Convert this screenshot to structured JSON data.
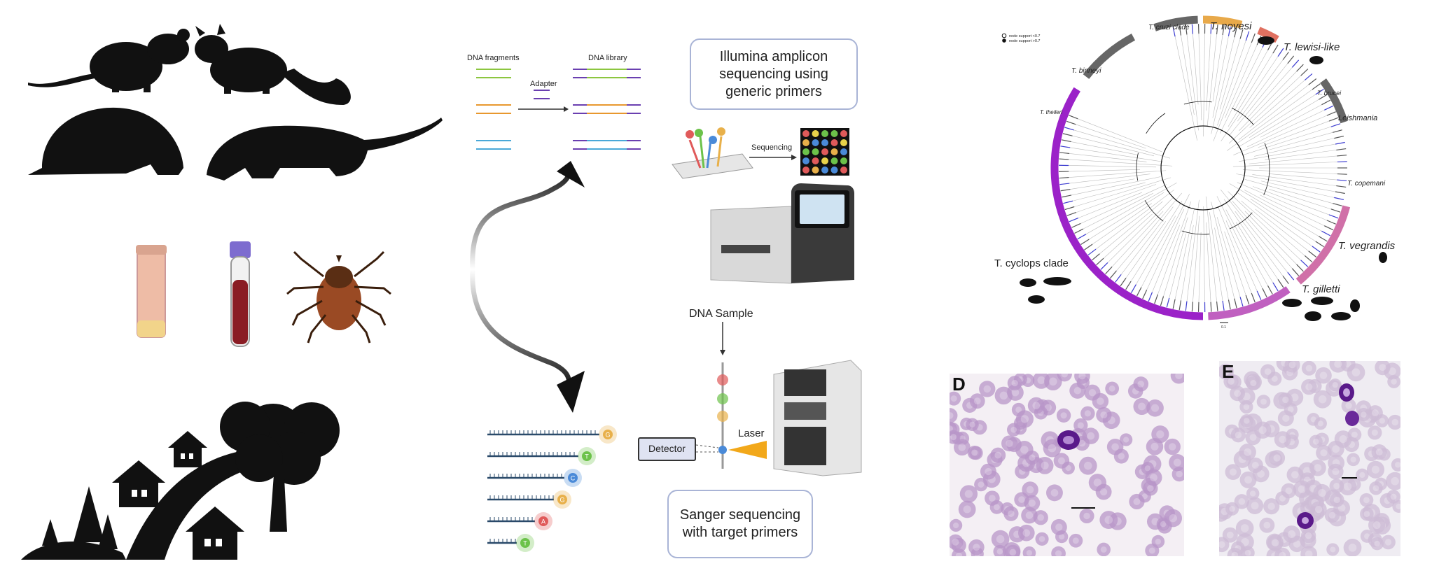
{
  "workflow": {
    "dna_fragments_label": "DNA fragments",
    "dna_library_label": "DNA library",
    "adapter_label": "Adapter",
    "sequencing_label": "Sequencing",
    "illumina_box": "Illumina amplicon\nsequencing using\ngeneric primers",
    "dna_sample_label": "DNA Sample",
    "detector_label": "Detector",
    "laser_label": "Laser",
    "sanger_box": "Sanger sequencing\nwith target primers",
    "sanger_bases": [
      "G",
      "T",
      "C",
      "G",
      "A",
      "T"
    ],
    "base_colors": {
      "G": "#e8b04a",
      "T": "#6cc24a",
      "C": "#4a8ad8",
      "A": "#e05a5a"
    }
  },
  "tree": {
    "legend": [
      "node support <0.7",
      "node support >0.7"
    ],
    "clades": [
      {
        "name": "T. cruzi clade",
        "color": "#666666"
      },
      {
        "name": "T. noyesi",
        "color": "#e8a94a"
      },
      {
        "name": "T. lewisi-like",
        "color": "#e07060"
      },
      {
        "name": "T. binneyi",
        "color": "#666666"
      },
      {
        "name": "T. brucei",
        "color": "#666666"
      },
      {
        "name": "Leishmania",
        "color": "#666666"
      },
      {
        "name": "T. theileri",
        "color": "#666666"
      },
      {
        "name": "T. copemani",
        "color": "#666666"
      },
      {
        "name": "T. vegrandis",
        "color": "#d070a8"
      },
      {
        "name": "T. cyclops clade",
        "color": "#9b22c8"
      },
      {
        "name": "T. gilletti",
        "color": "#c060c0"
      }
    ],
    "scale_label": "0.1"
  },
  "micrographs": [
    {
      "letter": "D"
    },
    {
      "letter": "E"
    }
  ]
}
